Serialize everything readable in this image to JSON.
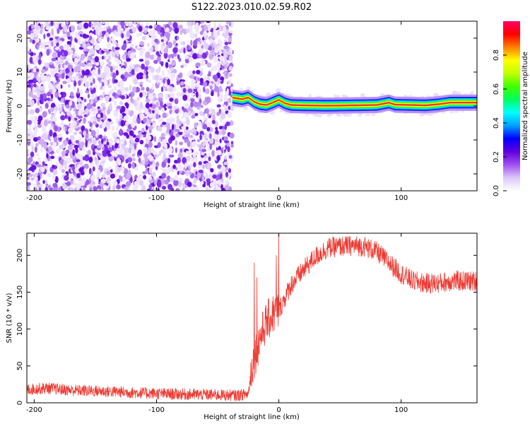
{
  "figure_title": "S122.2023.010.02.59.R02",
  "chart_data": [
    {
      "type": "heatmap",
      "title": "",
      "xlabel": "Height of straight line (km)",
      "ylabel": "Frequency (Hz)",
      "xlim": [
        -206,
        162
      ],
      "ylim": [
        -25,
        25
      ],
      "xticks": [
        -200,
        -100,
        0,
        100
      ],
      "yticks": [
        -20,
        -10,
        0,
        10,
        20
      ],
      "grid": false,
      "colorbar": {
        "label": "Normalized spectral amplitude",
        "range": [
          0,
          1
        ],
        "ticks": [
          0.0,
          0.2,
          0.4,
          0.6,
          0.8
        ],
        "colormap": "rainbow",
        "stops": [
          "#ffffff",
          "#dcc8f8",
          "#a050f0",
          "#6000e0",
          "#0000ff",
          "#00a0ff",
          "#00ffff",
          "#00ff60",
          "#40ff00",
          "#c0ff00",
          "#ffff00",
          "#ff8000",
          "#ff0000",
          "#ff0060"
        ]
      },
      "noise_region_x": [
        -206,
        -38
      ],
      "ridge_x": [
        -38,
        -30,
        -25,
        -20,
        -15,
        -10,
        -5,
        0,
        5,
        10,
        20,
        40,
        60,
        80,
        90,
        95,
        120,
        130,
        140,
        162
      ],
      "ridge_y": [
        2.5,
        2.0,
        2.5,
        1.2,
        0.5,
        0.3,
        1.0,
        1.8,
        0.8,
        0.3,
        0.2,
        0.1,
        0.2,
        0.3,
        1.0,
        0.4,
        0.2,
        0.5,
        1.0,
        1.0
      ]
    },
    {
      "type": "line",
      "title": "",
      "xlabel": "Height of straight line (km)",
      "ylabel": "SNR (10 * v/v)",
      "xlim": [
        -206,
        162
      ],
      "ylim": [
        0,
        230
      ],
      "xticks": [
        -200,
        -100,
        0,
        100
      ],
      "yticks": [
        0,
        50,
        100,
        150,
        200
      ],
      "grid": false,
      "color": "#ee3a32",
      "envelope_x": [
        -206,
        -190,
        -170,
        -150,
        -120,
        -90,
        -60,
        -35,
        -25,
        -22,
        -20,
        -15,
        -10,
        -5,
        0,
        10,
        20,
        30,
        40,
        50,
        60,
        70,
        80,
        90,
        100,
        110,
        120,
        130,
        140,
        150,
        162
      ],
      "envelope_y": [
        18,
        20,
        17,
        16,
        14,
        12,
        11,
        10,
        12,
        50,
        60,
        90,
        110,
        120,
        125,
        160,
        180,
        198,
        210,
        212,
        213,
        212,
        205,
        190,
        175,
        165,
        162,
        162,
        165,
        165,
        165
      ],
      "spikes": [
        {
          "x": -20,
          "y": 190
        },
        {
          "x": -18,
          "y": 170
        },
        {
          "x": 0,
          "y": 230
        },
        {
          "x": -2,
          "y": 200
        }
      ]
    }
  ]
}
